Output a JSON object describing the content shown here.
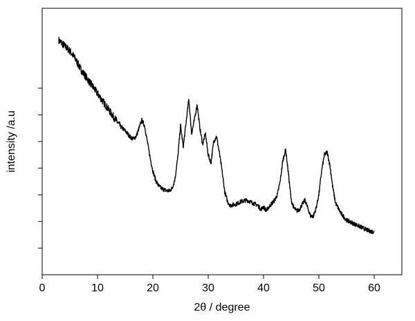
{
  "chart_data": {
    "type": "line",
    "title": "",
    "xlabel": "2θ / degree",
    "ylabel": "intensity /a.u",
    "xlim": [
      0,
      65
    ],
    "ylim": [
      0,
      100
    ],
    "x_ticks": [
      0,
      10,
      20,
      30,
      40,
      50,
      60
    ],
    "x_tick_labels": [
      "0",
      "10",
      "20",
      "30",
      "40",
      "50",
      "60"
    ],
    "y_ticks_unlabeled": [
      10,
      20,
      30,
      40,
      50,
      60,
      70
    ],
    "grid": false,
    "legend": "none",
    "line_color": "#000000",
    "series": [
      {
        "x": [
          3,
          4,
          5,
          6,
          7,
          8,
          9,
          10,
          11,
          12,
          13,
          14,
          15,
          16,
          16.5,
          17,
          17.5,
          18,
          18.5,
          19,
          19.5,
          20,
          20.5,
          21,
          21.5,
          22,
          22.5,
          23,
          23.5,
          24,
          24.5,
          25,
          25.5,
          26,
          26.5,
          27,
          27.5,
          28,
          28.5,
          29,
          29.5,
          30,
          30.5,
          31,
          31.5,
          32,
          32.5,
          33,
          33.5,
          34,
          35,
          36,
          37,
          38,
          38.5,
          39,
          39.5,
          40,
          40.5,
          41,
          42,
          42.5,
          43,
          43.5,
          44,
          44.5,
          45,
          45.5,
          46,
          46.5,
          47,
          47.5,
          48,
          48.5,
          49,
          49.5,
          50,
          50.5,
          51,
          51.5,
          52,
          52.5,
          53,
          53.5,
          54,
          55,
          56,
          57,
          58,
          59,
          60
        ],
        "y": [
          88,
          86,
          84,
          81,
          77,
          74,
          71,
          68,
          65,
          62,
          59,
          56,
          54,
          51.5,
          51,
          52,
          55,
          58,
          56,
          50,
          44,
          39,
          35.5,
          33.5,
          32.5,
          32,
          31.5,
          31.5,
          32.5,
          36,
          44,
          56,
          48,
          57,
          66,
          53,
          58,
          64,
          55,
          49,
          53,
          45,
          42,
          50,
          52,
          46,
          39,
          31,
          27.5,
          26,
          26.5,
          27.5,
          28,
          27,
          26.5,
          26,
          24.5,
          25.5,
          24,
          25.5,
          28,
          30,
          35,
          43,
          47,
          38,
          28,
          25,
          24,
          24.5,
          26.5,
          28,
          25,
          22,
          22,
          25,
          30,
          39,
          45,
          46,
          41,
          33,
          27,
          25,
          23,
          20.5,
          19.5,
          18.5,
          17.5,
          16.5,
          16
        ]
      }
    ]
  }
}
